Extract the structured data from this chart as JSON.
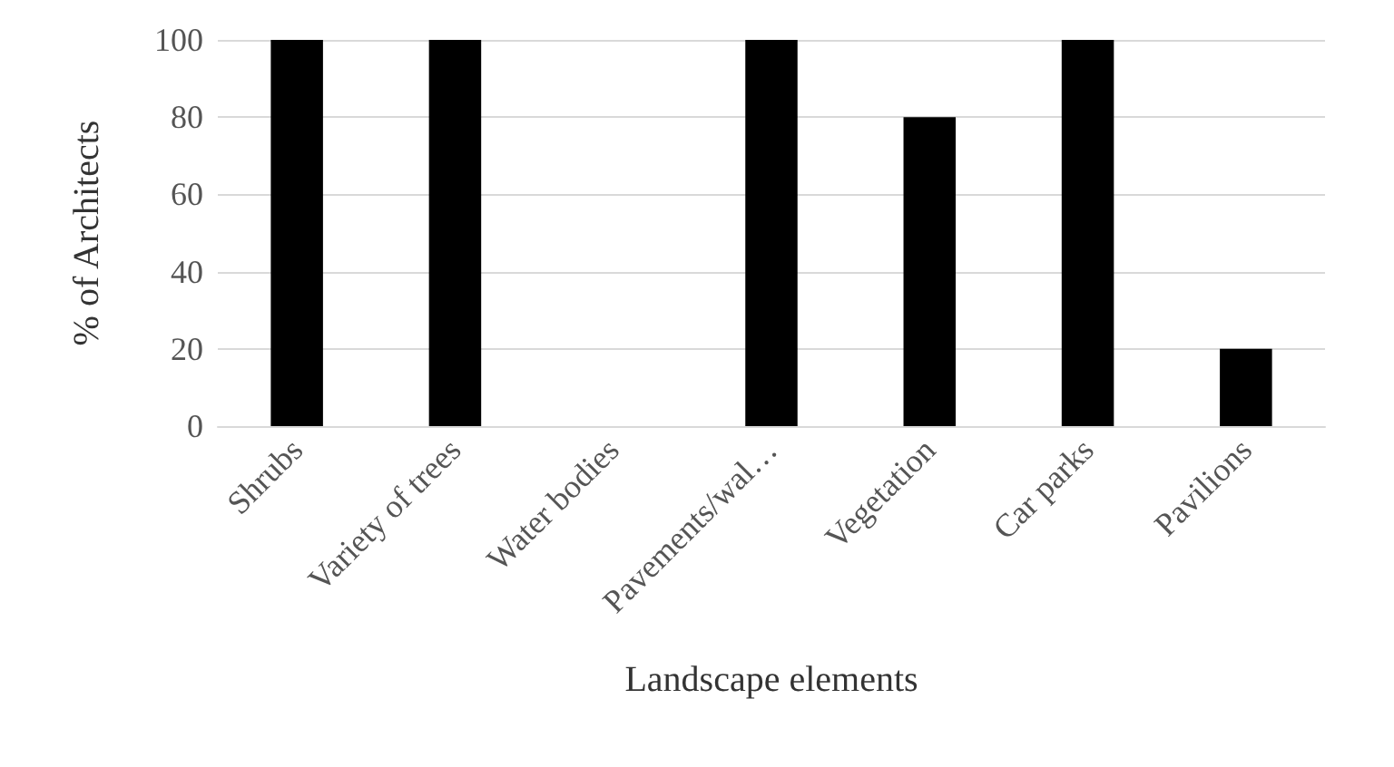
{
  "chart_data": {
    "type": "bar",
    "xlabel": "Landscape elements",
    "ylabel": "% of Architects",
    "categories": [
      "Shrubs",
      "Variety of trees",
      "Water bodies",
      "Pavements/wal…",
      "Vegetation",
      "Car parks",
      "Pavilions"
    ],
    "values": [
      100,
      100,
      0,
      100,
      80,
      100,
      20
    ],
    "color": "#000000",
    "ylim": [
      0,
      100
    ],
    "yticks": [
      0,
      20,
      40,
      60,
      80,
      100
    ],
    "grid": "y"
  }
}
